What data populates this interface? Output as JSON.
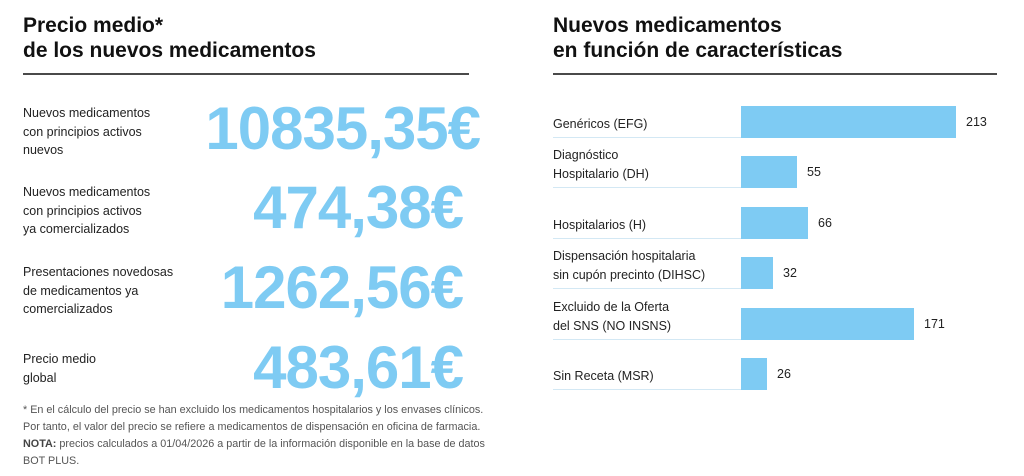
{
  "left_panel": {
    "title_line1": "Precio medio*",
    "title_line2": "de los nuevos medicamentos",
    "items": [
      {
        "label_lines": [
          "Nuevos medicamentos",
          "con principios activos",
          "nuevos"
        ],
        "value": "10835,35€"
      },
      {
        "label_lines": [
          "Nuevos medicamentos",
          "con principios activos",
          "ya comercializados"
        ],
        "value": "474,38€"
      },
      {
        "label_lines": [
          "Presentaciones novedosas",
          "de medicamentos ya",
          "comercializados"
        ],
        "value": "1262,56€"
      },
      {
        "label_lines": [
          "Precio medio",
          "global"
        ],
        "value": "483,61€"
      }
    ],
    "footnote_line1": "* En el cálculo del precio se han excluido los medicamentos hospitalarios y los envases clínicos.",
    "footnote_line2": "Por tanto, el valor del precio se refiere a medicamentos de dispensación en oficina de farmacia.",
    "note_label": "NOTA:",
    "note_text": " precios calculados a 01/04/2026 a partir de la información disponible en la base de datos",
    "note_line2": "BOT PLUS."
  },
  "right_panel": {
    "title_line1": "Nuevos medicamentos",
    "title_line2": "en función de características"
  },
  "colors": {
    "accent": "#7ecbf3",
    "separator": "#d3e8f4",
    "rule": "#4a4a4a"
  },
  "chart_data": {
    "type": "bar",
    "orientation": "horizontal",
    "title": "Nuevos medicamentos en función de características",
    "categories": [
      [
        "Genéricos (EFG)"
      ],
      [
        "Diagnóstico",
        "Hospitalario (DH)"
      ],
      [
        "Hospitalarios (H)"
      ],
      [
        "Dispensación hospitalaria",
        "sin cupón precinto (DIHSC)"
      ],
      [
        "Excluido de la Oferta",
        "del SNS (NO INSNS)"
      ],
      [
        "Sin Receta (MSR)"
      ]
    ],
    "values": [
      213,
      55,
      66,
      32,
      171,
      26
    ],
    "value_labels": [
      "213",
      "55",
      "66",
      "32",
      "171",
      "26"
    ],
    "xlabel": "",
    "ylabel": "",
    "xlim": [
      0,
      213
    ],
    "grid": false,
    "legend": "none"
  }
}
